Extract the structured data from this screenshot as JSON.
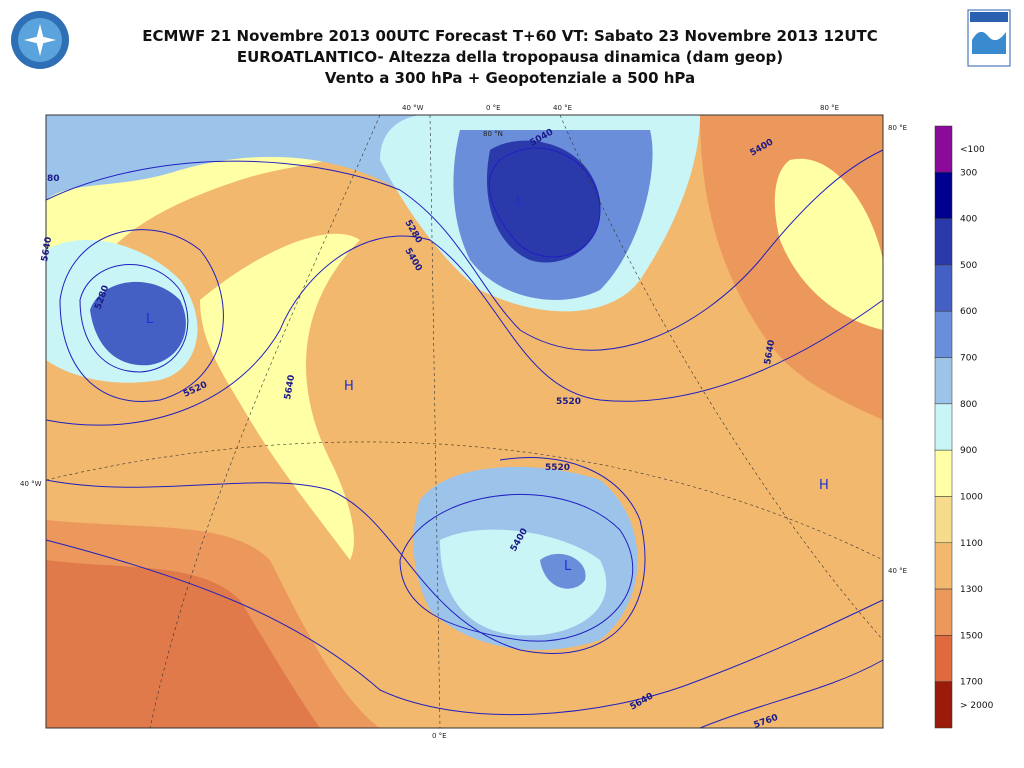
{
  "header": {
    "lines": [
      "ECMWF 21 Novembre 2013 00UTC Forecast T+60 VT: Sabato 23 Novembre 2013 12UTC",
      "EUROATLANTICO- Altezza della tropopausa dinamica (dam geop)",
      "Vento a 300 hPa   +  Geopotenziale a 500 hPa"
    ]
  },
  "map": {
    "graticule_labels": [
      "40 °W",
      "0 °E",
      "40 °E",
      "80 °E",
      "80 °E",
      "40 °E",
      "40 °W",
      "0 °E",
      "80 °N"
    ],
    "contour_labels": [
      "5280",
      "5520",
      "5640",
      "5280",
      "5400",
      "5040",
      "5400",
      "5640",
      "5520",
      "5520",
      "5400",
      "5640",
      "5760",
      "80",
      "5640"
    ],
    "centers": [
      "L",
      "H",
      "L",
      "L",
      "H"
    ]
  },
  "legend": {
    "labels": [
      "<100",
      "300",
      "400",
      "500",
      "600",
      "700",
      "800",
      "900",
      "1000",
      "1100",
      "1300",
      "1500",
      "1700",
      "> 2000"
    ],
    "colors": [
      "#8a0a9a",
      "#000090",
      "#2a3aab",
      "#4560c4",
      "#6b8edb",
      "#9cc3ea",
      "#c9f5f7",
      "#ffffa6",
      "#f7db8c",
      "#f2b86e",
      "#ec985c",
      "#e06a3e",
      "#9a1c08"
    ]
  }
}
